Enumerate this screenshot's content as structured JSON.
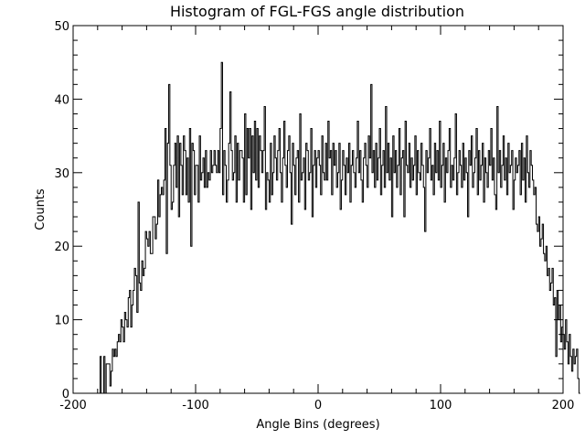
{
  "chart_data": {
    "type": "line",
    "step": true,
    "title": "Histogram of FGL-FGS angle distribution",
    "xlabel": "Angle Bins (degrees)",
    "ylabel": "Counts",
    "xlim": [
      -200,
      200
    ],
    "ylim": [
      0,
      50
    ],
    "grid": false,
    "xticks": [
      -200,
      -100,
      0,
      100,
      200
    ],
    "yticks": [
      0,
      10,
      20,
      30,
      40,
      50
    ],
    "bin_width": 1,
    "x_start": -180,
    "counts": [
      0,
      0,
      5,
      0,
      0,
      5,
      0,
      4,
      4,
      4,
      1,
      3,
      6,
      5,
      6,
      5,
      7,
      8,
      7,
      10,
      9,
      7,
      11,
      10,
      9,
      13,
      14,
      9,
      12,
      14,
      17,
      16,
      11,
      26,
      15,
      14,
      18,
      16,
      17,
      22,
      21,
      20,
      22,
      19,
      19,
      24,
      24,
      21,
      23,
      29,
      24,
      27,
      28,
      27,
      29,
      36,
      19,
      34,
      42,
      31,
      25,
      26,
      31,
      34,
      28,
      35,
      24,
      34,
      31,
      27,
      35,
      33,
      27,
      32,
      26,
      36,
      20,
      34,
      33,
      27,
      31,
      31,
      26,
      35,
      29,
      30,
      32,
      28,
      33,
      28,
      30,
      29,
      33,
      30,
      31,
      33,
      31,
      30,
      33,
      30,
      36,
      45,
      27,
      33,
      31,
      26,
      29,
      34,
      41,
      33,
      29,
      30,
      35,
      26,
      34,
      29,
      33,
      33,
      32,
      26,
      38,
      27,
      36,
      32,
      36,
      25,
      35,
      30,
      37,
      29,
      36,
      28,
      35,
      33,
      30,
      33,
      39,
      25,
      30,
      29,
      26,
      34,
      27,
      30,
      35,
      32,
      29,
      33,
      36,
      30,
      26,
      32,
      37,
      31,
      28,
      33,
      35,
      30,
      23,
      34,
      31,
      27,
      32,
      33,
      26,
      38,
      29,
      30,
      32,
      25,
      34,
      33,
      29,
      30,
      36,
      24,
      31,
      33,
      28,
      32,
      33,
      31,
      27,
      35,
      30,
      29,
      34,
      29,
      37,
      32,
      33,
      27,
      34,
      31,
      33,
      28,
      30,
      34,
      25,
      29,
      33,
      31,
      27,
      32,
      30,
      34,
      26,
      31,
      33,
      30,
      28,
      32,
      37,
      30,
      33,
      29,
      26,
      32,
      34,
      31,
      28,
      35,
      32,
      42,
      30,
      33,
      28,
      34,
      29,
      32,
      36,
      27,
      31,
      33,
      28,
      39,
      30,
      34,
      29,
      32,
      24,
      35,
      30,
      33,
      28,
      31,
      36,
      27,
      32,
      33,
      24,
      37,
      31,
      30,
      34,
      28,
      32,
      29,
      31,
      35,
      27,
      33,
      30,
      29,
      34,
      31,
      28,
      22,
      33,
      30,
      32,
      36,
      29,
      31,
      27,
      34,
      30,
      33,
      29,
      37,
      28,
      31,
      34,
      26,
      32,
      30,
      33,
      36,
      28,
      31,
      29,
      32,
      38,
      27,
      30,
      33,
      31,
      28,
      34,
      29,
      32,
      30,
      24,
      33,
      31,
      35,
      28,
      30,
      32,
      36,
      27,
      33,
      29,
      31,
      34,
      26,
      32,
      30,
      28,
      33,
      31,
      36,
      29,
      32,
      27,
      25,
      39,
      30,
      33,
      28,
      31,
      35,
      29,
      32,
      27,
      34,
      30,
      31,
      33,
      25,
      29,
      32,
      30,
      31,
      33,
      27,
      34,
      29,
      32,
      26,
      35,
      30,
      28,
      33,
      31,
      29,
      27,
      28,
      23,
      22,
      24,
      20,
      21,
      23,
      19,
      18,
      20,
      16,
      17,
      14,
      15,
      17,
      12,
      13,
      5,
      14,
      10,
      12,
      7,
      9,
      8,
      6,
      10,
      7,
      4,
      8,
      5,
      3,
      6,
      4,
      5,
      6,
      2,
      0
    ]
  }
}
